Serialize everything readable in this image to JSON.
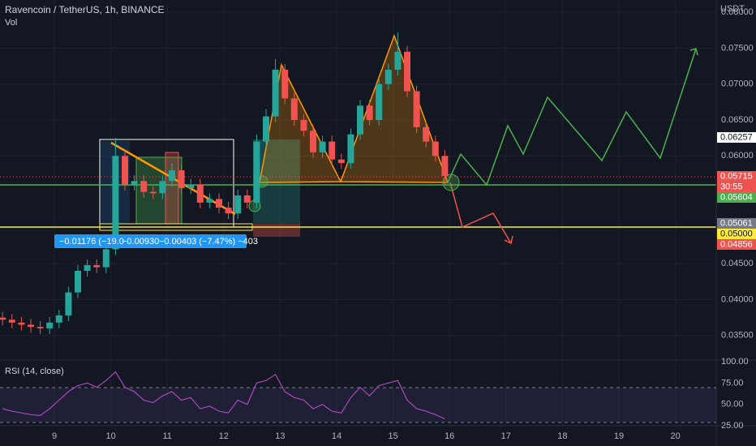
{
  "header": {
    "title": "Ravencoin / TetherUS, 1h, BINANCE",
    "volume_label": "Vol",
    "unit": "USDT"
  },
  "price_axis": {
    "ylim": [
      0.0317,
      0.0817
    ],
    "ticks": [
      {
        "value": 0.08,
        "label": "0.08000"
      },
      {
        "value": 0.075,
        "label": "0.07500"
      },
      {
        "value": 0.07,
        "label": "0.07000"
      },
      {
        "value": 0.065,
        "label": "0.06500"
      },
      {
        "value": 0.06,
        "label": "0.06000"
      },
      {
        "value": 0.045,
        "label": "0.04500"
      },
      {
        "value": 0.04,
        "label": "0.04000"
      },
      {
        "value": 0.035,
        "label": "0.03500"
      }
    ]
  },
  "price_tags": [
    {
      "value": 0.06257,
      "label": "0.06257",
      "color": "#ffffff",
      "text_color": "#131722"
    },
    {
      "value": 0.05715,
      "label": "0.05715",
      "countdown": "30:55",
      "color": "#ef5350",
      "text_color": "#ffffff"
    },
    {
      "value": 0.05604,
      "label": "0.05604",
      "color": "#4caf50",
      "text_color": "#ffffff"
    },
    {
      "value": 0.05061,
      "label": "0.05061",
      "color": "#787b86",
      "text_color": "#ffffff"
    },
    {
      "value": 0.05,
      "label": "0.05000",
      "color": "#ffeb3b",
      "text_color": "#131722"
    },
    {
      "value": 0.04856,
      "label": "0.04856",
      "color": "#ef5350",
      "text_color": "#ffffff"
    }
  ],
  "time_axis": [
    "9",
    "10",
    "11",
    "12",
    "13",
    "14",
    "15",
    "16",
    "17",
    "18",
    "19",
    "20"
  ],
  "candles": {
    "open": [
      0.0375,
      0.0372,
      0.0368,
      0.0365,
      0.0362,
      0.036,
      0.0368,
      0.0378,
      0.041,
      0.044,
      0.0448,
      0.0445,
      0.047,
      0.06,
      0.056,
      0.0565,
      0.055,
      0.0548,
      0.0565,
      0.058,
      0.0555,
      0.056,
      0.0535,
      0.054,
      0.0528,
      0.052,
      0.0545,
      0.0535,
      0.062,
      0.0655,
      0.072,
      0.068,
      0.065,
      0.0635,
      0.0605,
      0.062,
      0.0595,
      0.059,
      0.063,
      0.067,
      0.065,
      0.07,
      0.072,
      0.0745,
      0.069,
      0.064,
      0.062,
      0.06
    ],
    "high": [
      0.0383,
      0.038,
      0.0376,
      0.0373,
      0.037,
      0.0376,
      0.0386,
      0.0418,
      0.0448,
      0.0456,
      0.0456,
      0.0478,
      0.0625,
      0.0608,
      0.0573,
      0.0573,
      0.0558,
      0.0573,
      0.059,
      0.0588,
      0.0568,
      0.0568,
      0.0548,
      0.0548,
      0.0536,
      0.0553,
      0.0553,
      0.063,
      0.0665,
      0.0735,
      0.0728,
      0.0688,
      0.0658,
      0.0643,
      0.0628,
      0.0628,
      0.0603,
      0.0638,
      0.0678,
      0.0678,
      0.0708,
      0.0728,
      0.0772,
      0.0753,
      0.0698,
      0.0648,
      0.0628,
      0.0608
    ],
    "low": [
      0.0364,
      0.036,
      0.0357,
      0.0354,
      0.0352,
      0.0352,
      0.036,
      0.037,
      0.0402,
      0.0432,
      0.0437,
      0.0437,
      0.0462,
      0.0552,
      0.0552,
      0.0542,
      0.054,
      0.054,
      0.0557,
      0.0547,
      0.0547,
      0.0527,
      0.0527,
      0.052,
      0.0512,
      0.0512,
      0.0527,
      0.0527,
      0.0612,
      0.0647,
      0.0672,
      0.0642,
      0.0627,
      0.0597,
      0.0597,
      0.0587,
      0.0582,
      0.0582,
      0.0622,
      0.0642,
      0.0642,
      0.0692,
      0.0712,
      0.0682,
      0.0632,
      0.0612,
      0.0592,
      0.056
    ],
    "close": [
      0.0372,
      0.0368,
      0.0365,
      0.0362,
      0.036,
      0.0368,
      0.0378,
      0.041,
      0.044,
      0.0448,
      0.0445,
      0.047,
      0.06,
      0.056,
      0.0565,
      0.055,
      0.0548,
      0.0565,
      0.058,
      0.0555,
      0.056,
      0.0535,
      0.054,
      0.0528,
      0.052,
      0.0545,
      0.0535,
      0.062,
      0.0655,
      0.072,
      0.068,
      0.065,
      0.0635,
      0.0605,
      0.062,
      0.0595,
      0.059,
      0.063,
      0.067,
      0.065,
      0.07,
      0.072,
      0.0745,
      0.069,
      0.064,
      0.062,
      0.06,
      0.0572
    ]
  },
  "measurements": [
    "−0.01176 (−19.0",
    "−0.00930",
    "−0.00403 (−7.47%) −403"
  ],
  "rsi": {
    "label": "RSI (14, close)",
    "ylim": [
      21.25,
      100
    ],
    "ticks": [
      {
        "value": 100,
        "label": "100.00"
      },
      {
        "value": 75,
        "label": "75.00"
      },
      {
        "value": 50,
        "label": "50.00"
      },
      {
        "value": 25,
        "label": "25.00"
      }
    ],
    "values": [
      45,
      42,
      40,
      38,
      37,
      45,
      55,
      65,
      72,
      75,
      70,
      78,
      88,
      70,
      65,
      55,
      52,
      60,
      65,
      55,
      58,
      45,
      48,
      42,
      40,
      55,
      50,
      75,
      78,
      85,
      65,
      58,
      55,
      45,
      50,
      42,
      40,
      58,
      70,
      60,
      72,
      75,
      78,
      55,
      45,
      42,
      38,
      33
    ]
  }
}
